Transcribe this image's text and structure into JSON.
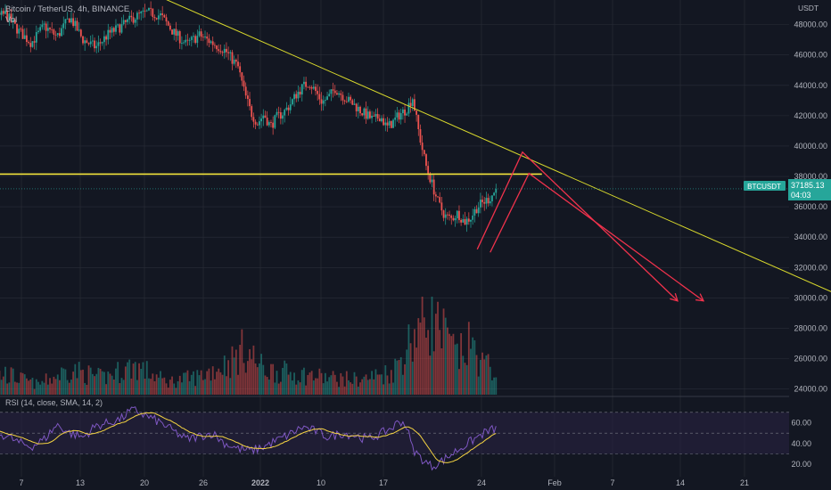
{
  "chart_data": {
    "type": "candlestick",
    "header": {
      "symbol_line": "Bitcoin / TetherUS, 4h, BINANCE",
      "volume_label": "Vol"
    },
    "price_axis": {
      "unit": "USDT",
      "ticks": [
        "48000.00",
        "46000.00",
        "44000.00",
        "42000.00",
        "40000.00",
        "38000.00",
        "36000.00",
        "34000.00",
        "32000.00",
        "30000.00",
        "28000.00",
        "26000.00",
        "24000.00"
      ],
      "range": [
        23800,
        48800
      ]
    },
    "time_axis": {
      "ticks": [
        "7",
        "13",
        "20",
        "26",
        "2022",
        "10",
        "17",
        "24",
        "Feb",
        "7",
        "14",
        "21"
      ]
    },
    "price_badge": {
      "symbol": "BTCUSDT",
      "price": "37185.13",
      "countdown": "04:03",
      "value": 37185.13
    },
    "rsi": {
      "label": "RSI (14, close, SMA, 14, 2)",
      "ticks": [
        "60.00",
        "40.00",
        "20.00"
      ],
      "bands": [
        70,
        50,
        30
      ]
    },
    "price_path": [
      [
        -6,
        47500
      ],
      [
        -3,
        48200
      ],
      [
        0,
        48700
      ],
      [
        2,
        47600
      ],
      [
        4,
        46800
      ],
      [
        6,
        47900
      ],
      [
        8,
        47200
      ],
      [
        10,
        48500
      ],
      [
        12,
        47000
      ],
      [
        14,
        46500
      ],
      [
        16,
        47400
      ],
      [
        18,
        47900
      ],
      [
        20,
        48500
      ],
      [
        22,
        48800
      ],
      [
        24,
        48600
      ],
      [
        26,
        47500
      ],
      [
        28,
        46700
      ],
      [
        30,
        47300
      ],
      [
        32,
        46800
      ],
      [
        34,
        46300
      ],
      [
        36,
        45200
      ],
      [
        37,
        43500
      ],
      [
        38,
        42200
      ],
      [
        39,
        41500
      ],
      [
        40,
        42100
      ],
      [
        41,
        41300
      ],
      [
        42,
        41900
      ],
      [
        43,
        42200
      ],
      [
        44,
        42700
      ],
      [
        45,
        43400
      ],
      [
        46,
        43900
      ],
      [
        47,
        44200
      ],
      [
        48,
        43600
      ],
      [
        49,
        42900
      ],
      [
        50,
        43200
      ],
      [
        51,
        43800
      ],
      [
        52,
        43400
      ],
      [
        53,
        43000
      ],
      [
        54,
        42700
      ],
      [
        55,
        42300
      ],
      [
        56,
        42000
      ],
      [
        57,
        41700
      ],
      [
        58,
        42000
      ],
      [
        59,
        41200
      ],
      [
        60,
        41600
      ],
      [
        61,
        42100
      ],
      [
        62,
        42400
      ],
      [
        63,
        43200
      ],
      [
        64,
        40800
      ],
      [
        65,
        38800
      ],
      [
        66,
        37500
      ],
      [
        67,
        36200
      ],
      [
        68,
        35400
      ],
      [
        69,
        35200
      ],
      [
        70,
        35600
      ],
      [
        71,
        35000
      ],
      [
        72,
        35300
      ],
      [
        73,
        36000
      ],
      [
        74,
        36300
      ],
      [
        75,
        36600
      ],
      [
        76,
        37185
      ]
    ],
    "vol_path": [
      [
        -6,
        0.18
      ],
      [
        0,
        0.25
      ],
      [
        5,
        0.12
      ],
      [
        10,
        0.3
      ],
      [
        15,
        0.2
      ],
      [
        20,
        0.35
      ],
      [
        25,
        0.15
      ],
      [
        30,
        0.22
      ],
      [
        35,
        0.4
      ],
      [
        37,
        0.55
      ],
      [
        40,
        0.3
      ],
      [
        45,
        0.25
      ],
      [
        50,
        0.2
      ],
      [
        55,
        0.18
      ],
      [
        60,
        0.28
      ],
      [
        63,
        0.7
      ],
      [
        65,
        0.95
      ],
      [
        67,
        0.8
      ],
      [
        70,
        0.45
      ],
      [
        72,
        0.6
      ],
      [
        74,
        0.35
      ],
      [
        76,
        0.3
      ]
    ],
    "rsi_path": [
      [
        -6,
        56
      ],
      [
        -3,
        50
      ],
      [
        0,
        48
      ],
      [
        2,
        41
      ],
      [
        4,
        37
      ],
      [
        6,
        44
      ],
      [
        8,
        58
      ],
      [
        10,
        50
      ],
      [
        12,
        46
      ],
      [
        14,
        57
      ],
      [
        16,
        60
      ],
      [
        18,
        64
      ],
      [
        19,
        70
      ],
      [
        20,
        72
      ],
      [
        22,
        66
      ],
      [
        24,
        60
      ],
      [
        26,
        52
      ],
      [
        28,
        44
      ],
      [
        30,
        47
      ],
      [
        32,
        50
      ],
      [
        34,
        40
      ],
      [
        36,
        35
      ],
      [
        38,
        33
      ],
      [
        40,
        37
      ],
      [
        42,
        43
      ],
      [
        44,
        49
      ],
      [
        46,
        56
      ],
      [
        48,
        52
      ],
      [
        50,
        46
      ],
      [
        52,
        50
      ],
      [
        54,
        48
      ],
      [
        56,
        44
      ],
      [
        58,
        49
      ],
      [
        60,
        56
      ],
      [
        61,
        62
      ],
      [
        62,
        58
      ],
      [
        63,
        35
      ],
      [
        64,
        28
      ],
      [
        65,
        22
      ],
      [
        66,
        18
      ],
      [
        68,
        25
      ],
      [
        70,
        34
      ],
      [
        72,
        42
      ],
      [
        74,
        50
      ],
      [
        76,
        55
      ]
    ],
    "annotations": {
      "horizontal_level": 38150,
      "trendline": [
        {
          "i": 15,
          "p": 51500
        },
        {
          "i": 131,
          "p": 29800
        }
      ],
      "projection_arrows": [
        {
          "points": [
            {
              "i": 73,
              "p": 33200
            },
            {
              "i": 80,
              "p": 39600
            },
            {
              "i": 104,
              "p": 29800
            }
          ]
        },
        {
          "points": [
            {
              "i": 75,
              "p": 33000
            },
            {
              "i": 81,
              "p": 38200
            },
            {
              "i": 108,
              "p": 29800
            }
          ]
        }
      ]
    },
    "colors": {
      "background": "#131722",
      "grid": "#2a2e39",
      "up": "#26a69a",
      "down": "#ef5350",
      "trendline": "#d9d92c",
      "level": "#f5e63c",
      "arrows": "#f0324c",
      "rsi_line": "#7e57c2",
      "rsi_ma": "#f5d442",
      "rsi_fill": "#2a2244",
      "badge": "#26a69a",
      "axis_text": "#b2b5be"
    }
  }
}
